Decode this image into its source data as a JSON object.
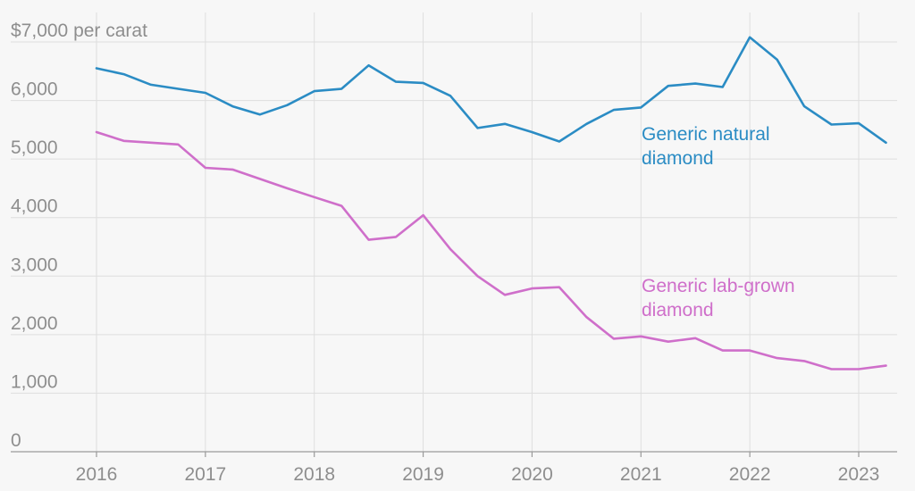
{
  "colors": {
    "natural": "#2b8cc4",
    "lab_grown": "#cf6fca",
    "text": "#8e8e8e",
    "grid": "#dedede"
  },
  "chart_data": {
    "type": "line",
    "title": "",
    "xlabel": "",
    "ylabel": "",
    "ylim": [
      0,
      7000
    ],
    "y_ticks": [
      {
        "value": 0,
        "label": "0"
      },
      {
        "value": 1000,
        "label": "1,000"
      },
      {
        "value": 2000,
        "label": "2,000"
      },
      {
        "value": 3000,
        "label": "3,000"
      },
      {
        "value": 4000,
        "label": "4,000"
      },
      {
        "value": 5000,
        "label": "5,000"
      },
      {
        "value": 6000,
        "label": "6,000"
      },
      {
        "value": 7000,
        "label": "$7,000 per carat"
      }
    ],
    "x_ticks": [
      2016,
      2017,
      2018,
      2019,
      2020,
      2021,
      2022,
      2023
    ],
    "xlim": [
      2016,
      2023.25
    ],
    "grid": true,
    "legend": "inline labels",
    "series": [
      {
        "name": "Generic natural diamond",
        "label_lines": [
          "Generic natural",
          "diamond"
        ],
        "color_key": "natural",
        "x": [
          2016.0,
          2016.25,
          2016.5,
          2016.75,
          2017.0,
          2017.25,
          2017.5,
          2017.75,
          2018.0,
          2018.25,
          2018.5,
          2018.75,
          2019.0,
          2019.25,
          2019.5,
          2019.75,
          2020.0,
          2020.25,
          2020.5,
          2020.75,
          2021.0,
          2021.25,
          2021.5,
          2021.75,
          2022.0,
          2022.25,
          2022.5,
          2022.75,
          2023.0,
          2023.25
        ],
        "values": [
          6550,
          6450,
          6270,
          6200,
          6130,
          5900,
          5760,
          5920,
          6160,
          6200,
          6600,
          6320,
          6300,
          6080,
          5530,
          5600,
          5460,
          5300,
          5600,
          5840,
          5880,
          6250,
          6290,
          6230,
          7080,
          6700,
          5900,
          5590,
          5610,
          5280
        ]
      },
      {
        "name": "Generic lab-grown diamond",
        "label_lines": [
          "Generic lab-grown",
          "diamond"
        ],
        "color_key": "lab_grown",
        "x": [
          2016.0,
          2016.25,
          2016.5,
          2016.75,
          2017.0,
          2017.25,
          2017.5,
          2017.75,
          2018.0,
          2018.25,
          2018.5,
          2018.75,
          2019.0,
          2019.25,
          2019.5,
          2019.75,
          2020.0,
          2020.25,
          2020.5,
          2020.75,
          2021.0,
          2021.25,
          2021.5,
          2021.75,
          2022.0,
          2022.25,
          2022.5,
          2022.75,
          2023.0,
          2023.25
        ],
        "values": [
          5460,
          5310,
          5280,
          5250,
          4850,
          4820,
          4660,
          4500,
          4350,
          4200,
          3620,
          3670,
          4040,
          3460,
          3000,
          2680,
          2790,
          2810,
          2300,
          1930,
          1970,
          1880,
          1940,
          1730,
          1730,
          1600,
          1550,
          1410,
          1410,
          1470
        ]
      }
    ]
  }
}
